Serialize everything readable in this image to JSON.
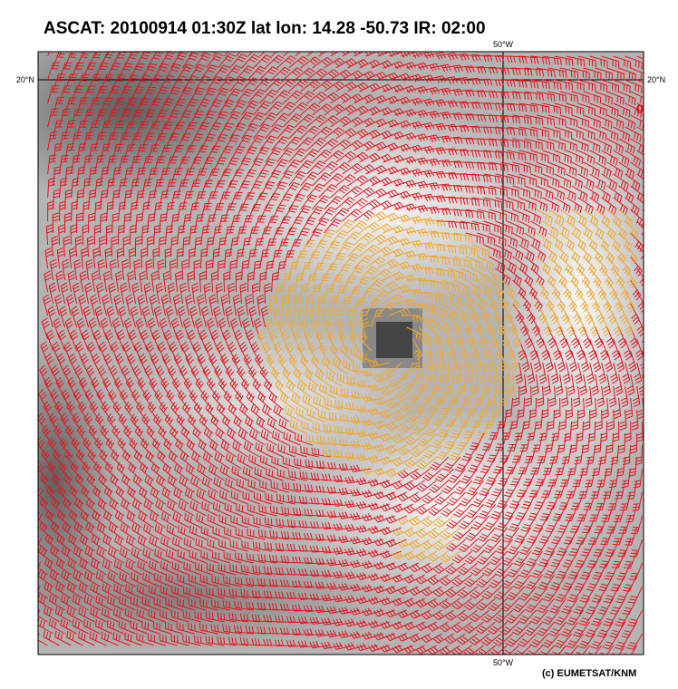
{
  "header": {
    "title": "ASCAT: 20100914 01:30Z   lat lon: 14.28 -50.73 IR: 02:00"
  },
  "map": {
    "lon_label_top": "50°W",
    "lon_label_bottom": "50°W",
    "lat_label_left": "20°N",
    "lat_label_right": "20°N",
    "marker": "0"
  },
  "footer": {
    "credit": "(c) EUMETSAT/KNM"
  }
}
